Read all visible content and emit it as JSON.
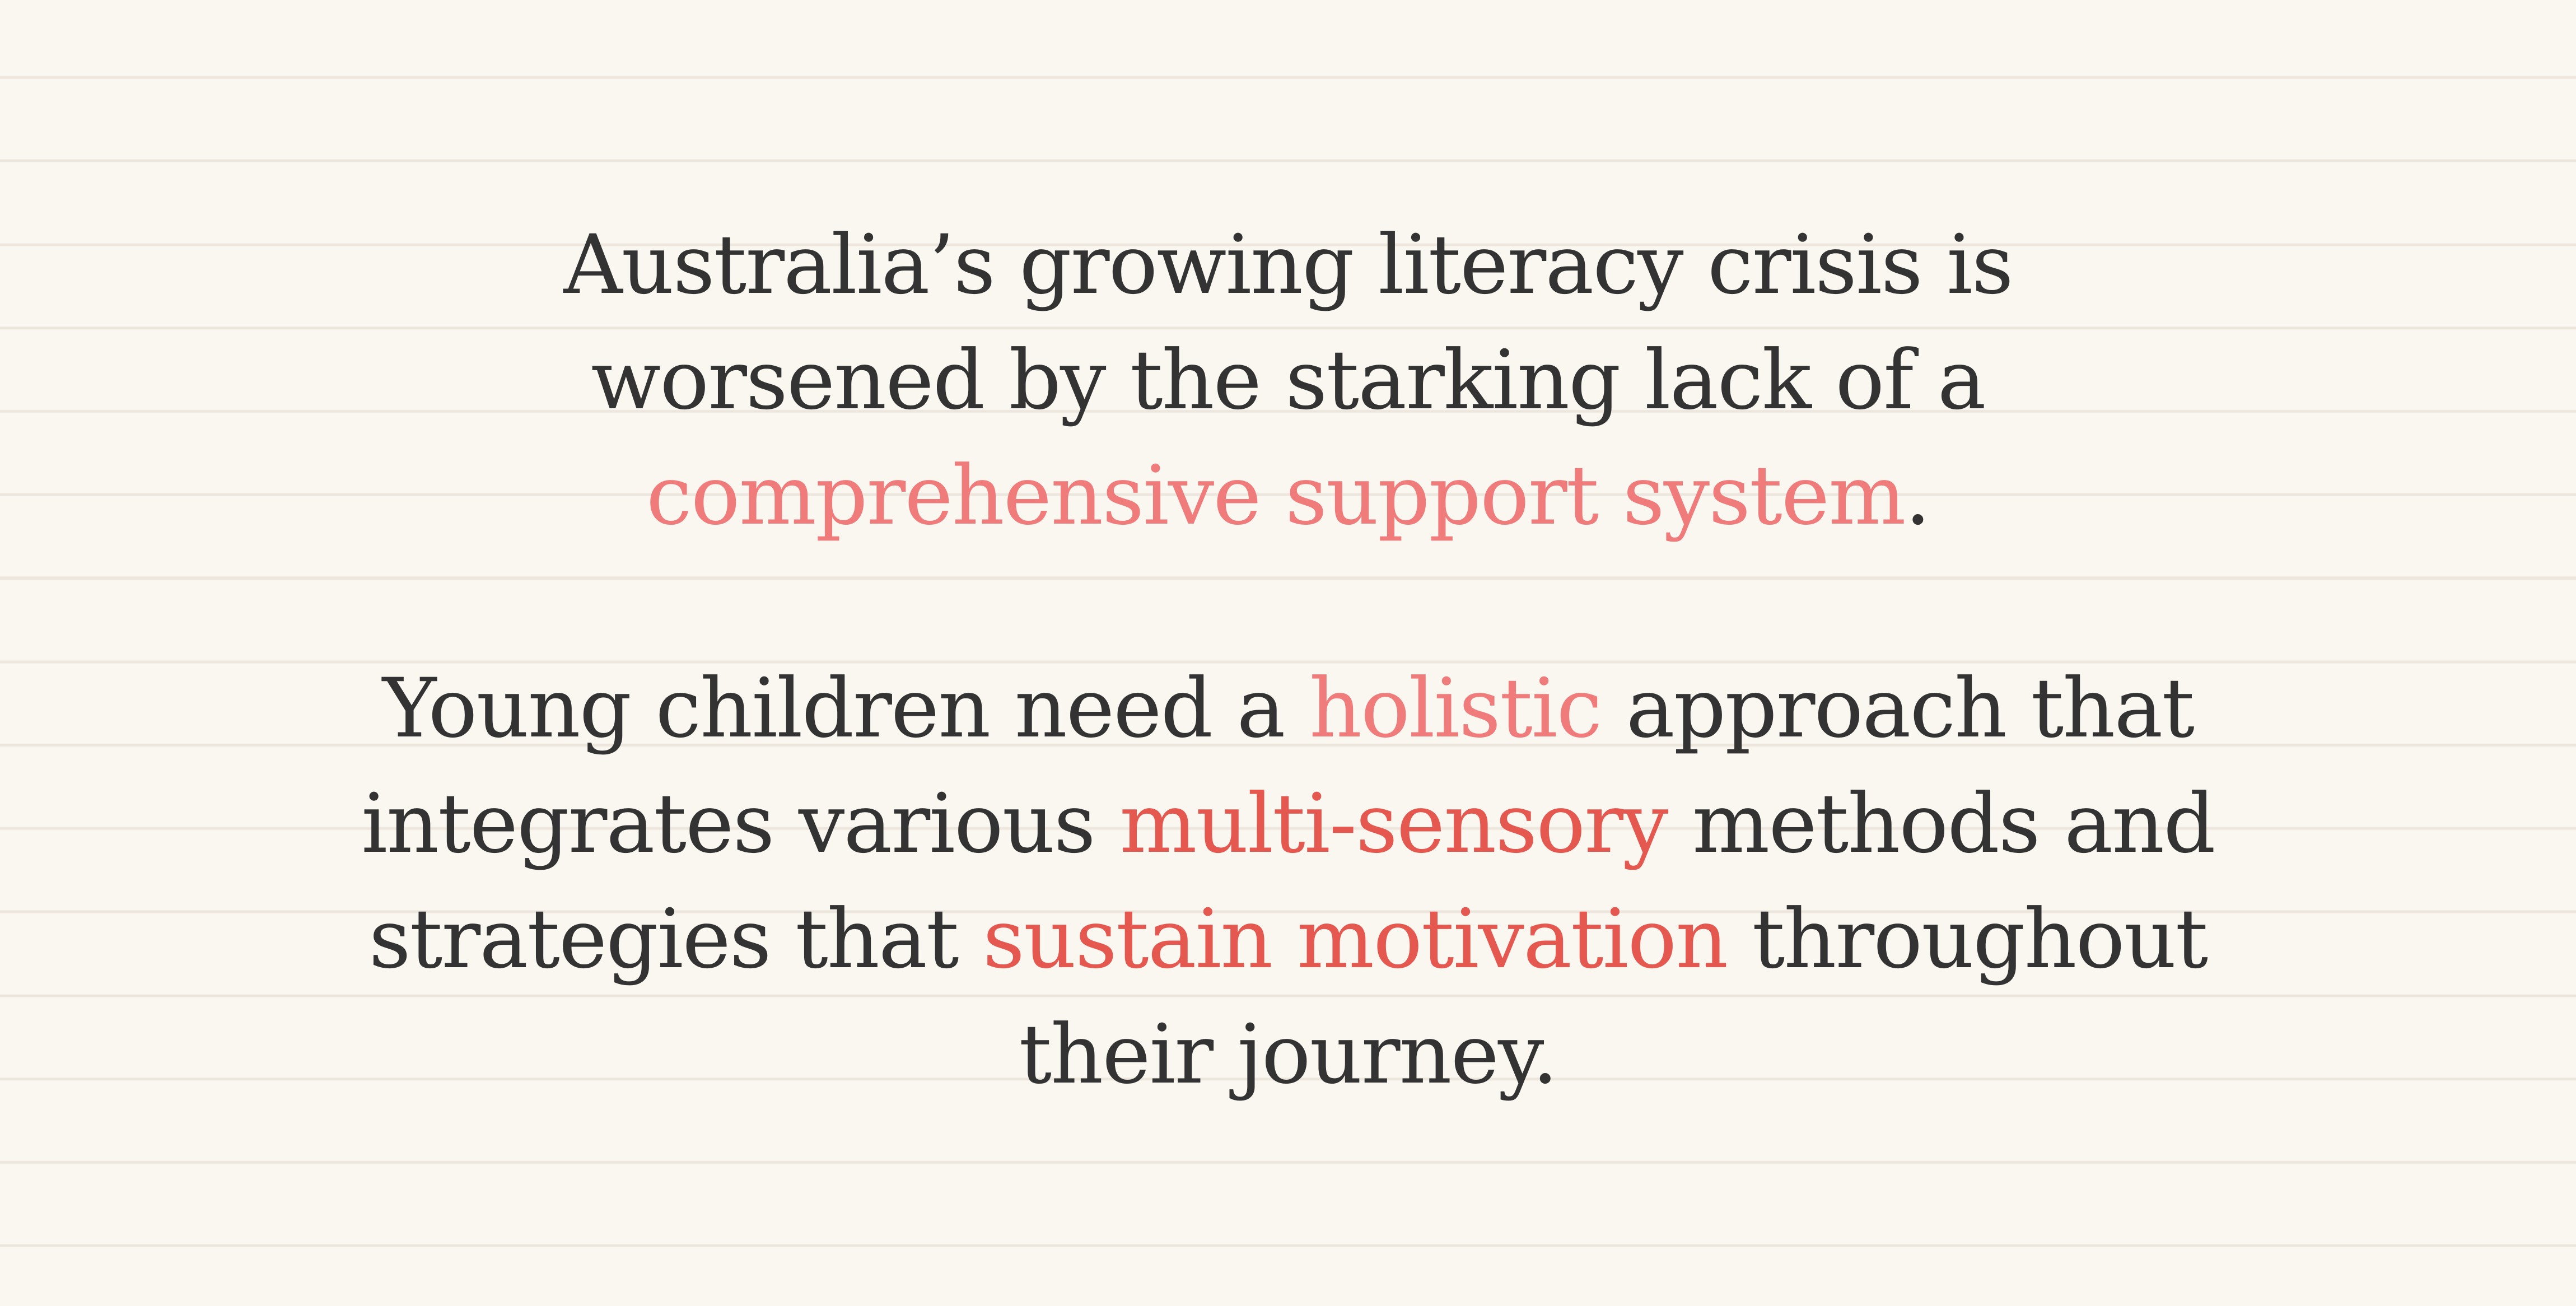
{
  "colors": {
    "background": "#faf6f0",
    "ruled_line": "#ece6dd",
    "text": "#333333",
    "highlight_light": "#f07b7b",
    "highlight_dark": "#e5584f"
  },
  "paragraph1": {
    "line1": "Australia’s growing literacy crisis is",
    "line2": "worsened by the starking lack of a",
    "line3_highlight": "comprehensive support system",
    "line3_end": "."
  },
  "paragraph2": {
    "line1_start": "Young children need a ",
    "line1_highlight": "holistic",
    "line1_end": " approach that",
    "line2_start": "integrates various ",
    "line2_highlight": "multi-sensory",
    "line2_end": " methods and",
    "line3_start": "strategies that ",
    "line3_highlight": "sustain motivation",
    "line3_end": " throughout",
    "line4": "their journey."
  }
}
